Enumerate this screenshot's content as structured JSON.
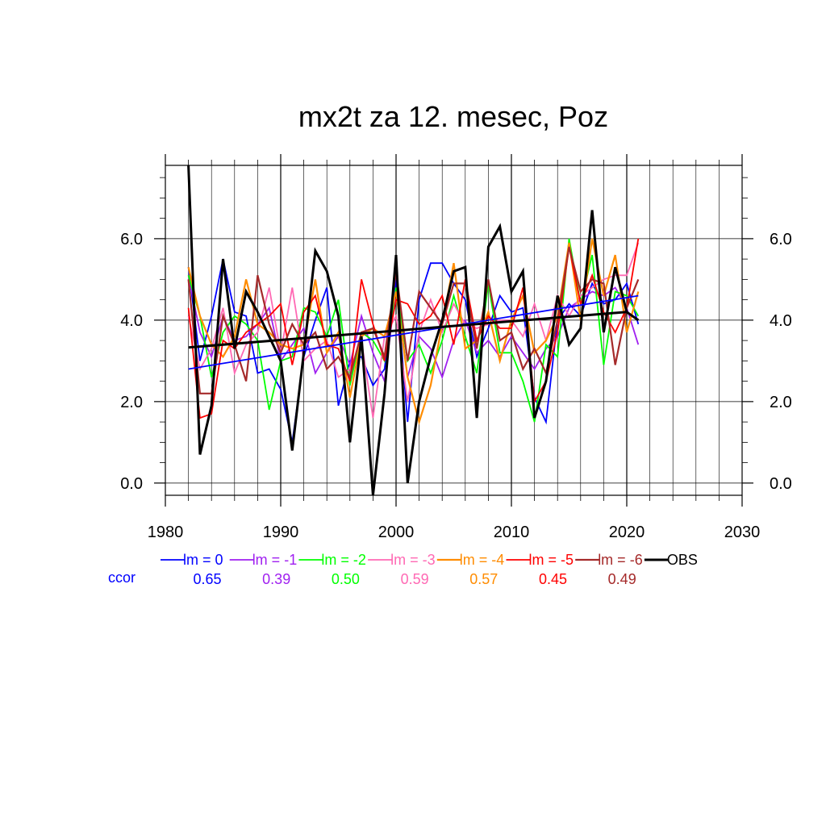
{
  "chart_data": {
    "type": "line",
    "title": "mx2t za 12. mesec, Poz",
    "xlabel": "",
    "ylabel": "",
    "xlim": [
      1980,
      2030
    ],
    "ylim": [
      -0.3,
      7.8
    ],
    "x_ticks": [
      1980,
      1990,
      2000,
      2010,
      2020,
      2030
    ],
    "x_tick_labels": [
      "1980",
      "1990",
      "2000",
      "2010",
      "2020",
      "2030"
    ],
    "y_ticks": [
      0,
      2,
      4,
      6
    ],
    "y_tick_labels": [
      "0.0",
      "2.0",
      "4.0",
      "6.0"
    ],
    "grid": true,
    "legend_placement": "bottom",
    "ccor_label": "ccor",
    "ccor_color": "#0000ff",
    "x": [
      1982,
      1983,
      1984,
      1985,
      1986,
      1987,
      1988,
      1989,
      1990,
      1991,
      1992,
      1993,
      1994,
      1995,
      1996,
      1997,
      1998,
      1999,
      2000,
      2001,
      2002,
      2003,
      2004,
      2005,
      2006,
      2007,
      2008,
      2009,
      2010,
      2011,
      2012,
      2013,
      2014,
      2015,
      2016,
      2017,
      2018,
      2019,
      2020,
      2021
    ],
    "series": [
      {
        "name": "lm = 0",
        "color": "#0000ff",
        "width": 1.8,
        "ccor": "0.65",
        "values": [
          5.3,
          3.0,
          4.1,
          5.5,
          4.2,
          4.1,
          2.7,
          2.8,
          2.3,
          1.0,
          3.1,
          4.0,
          4.8,
          1.9,
          3.0,
          3.1,
          2.4,
          2.8,
          5.0,
          1.5,
          4.5,
          5.4,
          5.4,
          4.9,
          4.5,
          3.1,
          3.8,
          4.6,
          4.2,
          4.3,
          2.1,
          1.5,
          4.0,
          4.4,
          4.1,
          4.9,
          4.4,
          4.5,
          4.9,
          3.9
        ]
      },
      {
        "name": "lm = -1",
        "color": "#a020f0",
        "width": 1.8,
        "ccor": "0.39",
        "values": [
          5.1,
          3.7,
          3.1,
          4.1,
          3.5,
          3.6,
          3.9,
          4.3,
          3.0,
          3.4,
          3.8,
          2.7,
          3.2,
          3.6,
          2.9,
          4.1,
          3.2,
          2.5,
          4.8,
          2.6,
          3.6,
          3.3,
          2.6,
          3.5,
          4.0,
          3.2,
          3.5,
          3.1,
          3.6,
          3.2,
          2.8,
          3.3,
          3.6,
          4.3,
          4.5,
          4.7,
          4.6,
          4.8,
          4.3,
          3.4
        ]
      },
      {
        "name": "lm = -2",
        "color": "#00ff00",
        "width": 1.8,
        "ccor": "0.50",
        "values": [
          5.1,
          4.1,
          2.6,
          3.7,
          4.1,
          3.9,
          3.5,
          1.8,
          3.0,
          3.1,
          4.3,
          4.2,
          3.6,
          4.5,
          2.4,
          3.7,
          3.5,
          3.0,
          4.8,
          3.0,
          3.4,
          2.7,
          3.5,
          4.6,
          3.6,
          2.7,
          4.9,
          3.2,
          3.2,
          2.5,
          1.5,
          3.4,
          3.1,
          6.0,
          4.4,
          5.6,
          2.9,
          4.7,
          4.6,
          4.1
        ]
      },
      {
        "name": "lm = -3",
        "color": "#ff69b4",
        "width": 1.8,
        "ccor": "0.59",
        "values": [
          4.1,
          2.8,
          3.3,
          4.3,
          2.7,
          3.4,
          3.7,
          4.8,
          3.2,
          4.8,
          3.0,
          3.3,
          3.5,
          2.6,
          2.8,
          3.5,
          1.6,
          3.6,
          4.1,
          2.0,
          3.7,
          4.5,
          3.7,
          4.4,
          3.9,
          3.8,
          3.9,
          4.0,
          4.0,
          3.6,
          4.4,
          3.5,
          4.6,
          4.1,
          4.6,
          4.8,
          5.0,
          5.1,
          5.1,
          5.9
        ]
      },
      {
        "name": "lm = -4",
        "color": "#ff8c00",
        "width": 2.2,
        "ccor": "0.57",
        "values": [
          5.3,
          4.1,
          3.4,
          3.1,
          3.6,
          5.0,
          3.9,
          3.7,
          3.4,
          3.3,
          3.4,
          5.0,
          3.2,
          3.7,
          2.1,
          3.6,
          3.8,
          3.6,
          4.7,
          2.6,
          1.5,
          2.4,
          3.9,
          5.4,
          3.3,
          3.5,
          4.2,
          3.0,
          4.0,
          4.6,
          3.2,
          3.5,
          4.1,
          5.9,
          4.0,
          6.0,
          4.6,
          5.6,
          3.7,
          4.7
        ]
      },
      {
        "name": "lm = -5",
        "color": "#ff0000",
        "width": 1.8,
        "ccor": "0.45",
        "values": [
          4.3,
          1.6,
          1.7,
          3.5,
          3.3,
          3.7,
          3.9,
          4.1,
          4.4,
          2.9,
          4.2,
          4.6,
          3.4,
          3.3,
          2.5,
          5.0,
          3.9,
          3.0,
          4.5,
          4.4,
          3.9,
          4.1,
          4.6,
          3.4,
          5.0,
          3.5,
          4.1,
          3.8,
          3.8,
          4.8,
          2.0,
          2.5,
          3.7,
          5.8,
          4.4,
          5.1,
          4.2,
          3.7,
          4.3,
          6.0
        ]
      },
      {
        "name": "lm = -6",
        "color": "#a52a2a",
        "width": 2.2,
        "ccor": "0.49",
        "values": [
          5.0,
          2.2,
          2.2,
          4.1,
          3.4,
          2.5,
          5.1,
          3.9,
          3.2,
          3.9,
          3.4,
          3.7,
          2.8,
          3.1,
          2.6,
          3.7,
          3.8,
          3.1,
          5.2,
          3.0,
          4.7,
          4.3,
          3.9,
          4.9,
          4.9,
          3.3,
          5.0,
          3.5,
          3.7,
          2.8,
          3.3,
          2.7,
          4.0,
          5.8,
          4.7,
          5.0,
          4.9,
          2.9,
          4.3,
          5.0
        ]
      },
      {
        "name": "OBS",
        "color": "#000000",
        "width": 3.0,
        "ccor": "",
        "values": [
          7.8,
          0.7,
          1.9,
          5.5,
          3.3,
          4.7,
          4.2,
          3.6,
          3.0,
          0.8,
          3.2,
          5.7,
          5.2,
          4.1,
          1.0,
          3.6,
          -0.3,
          2.2,
          5.6,
          0.0,
          2.0,
          3.1,
          4.0,
          5.2,
          5.3,
          1.6,
          5.8,
          6.3,
          4.7,
          5.2,
          1.6,
          2.5,
          4.6,
          3.4,
          3.8,
          6.7,
          3.7,
          5.3,
          4.2,
          4.0
        ]
      }
    ],
    "trend_lines": [
      {
        "color": "#0000ff",
        "width": 1.8,
        "x": [
          1982,
          2021
        ],
        "y": [
          2.8,
          4.6
        ]
      },
      {
        "color": "#000000",
        "width": 3.0,
        "x": [
          1982,
          2020
        ],
        "y": [
          3.33,
          4.2
        ]
      }
    ]
  }
}
